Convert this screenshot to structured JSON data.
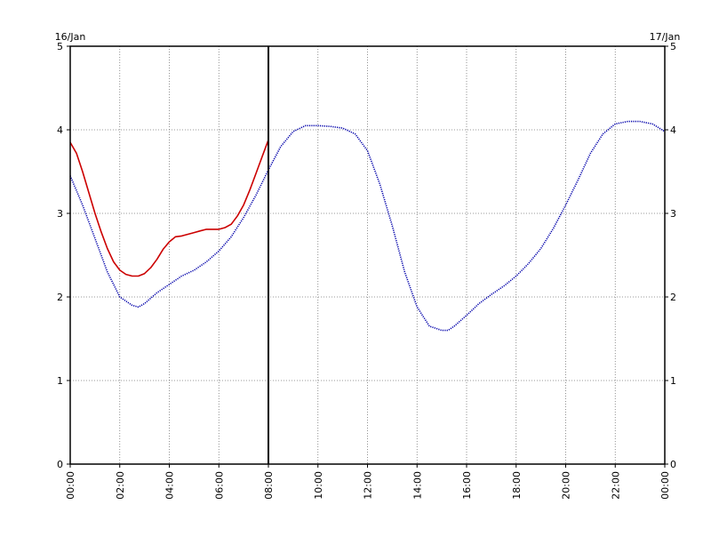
{
  "chart_data": {
    "type": "line",
    "title": "",
    "xlabel": "",
    "ylabel": "",
    "date_left": "16/Jan",
    "date_right": "17/Jan",
    "x_unit": "hours",
    "xlim": [
      0,
      24
    ],
    "ylim": [
      0,
      5
    ],
    "grid": true,
    "grid_style": "dotted",
    "x_tick_values": [
      0,
      2,
      4,
      6,
      8,
      10,
      12,
      14,
      16,
      18,
      20,
      22,
      24
    ],
    "x_tick_labels": [
      "00:00",
      "02:00",
      "04:00",
      "06:00",
      "08:00",
      "10:00",
      "12:00",
      "14:00",
      "16:00",
      "18:00",
      "20:00",
      "22:00",
      "00:00"
    ],
    "y_tick_values": [
      0,
      1,
      2,
      3,
      4,
      5
    ],
    "y_tick_labels": [
      "0",
      "1",
      "2",
      "3",
      "4",
      "5"
    ],
    "current_time_marker": 8.0,
    "series": [
      {
        "color": "#0000aa",
        "style": "dotted",
        "x": [
          0,
          0.5,
          1,
          1.5,
          2,
          2.5,
          2.75,
          3,
          3.5,
          4,
          4.5,
          5,
          5.5,
          6,
          6.5,
          7,
          7.5,
          8,
          8.5,
          9,
          9.5,
          10,
          10.5,
          11,
          11.5,
          12,
          12.5,
          13,
          13.5,
          14,
          14.5,
          15,
          15.25,
          15.5,
          16,
          16.5,
          17,
          17.5,
          18,
          18.5,
          19,
          19.5,
          20,
          20.5,
          21,
          21.5,
          22,
          22.5,
          23,
          23.5,
          24
        ],
        "y": [
          3.45,
          3.1,
          2.7,
          2.3,
          2.0,
          1.9,
          1.88,
          1.92,
          2.05,
          2.15,
          2.25,
          2.32,
          2.42,
          2.55,
          2.72,
          2.95,
          3.22,
          3.52,
          3.8,
          3.98,
          4.05,
          4.05,
          4.04,
          4.02,
          3.95,
          3.75,
          3.35,
          2.85,
          2.3,
          1.88,
          1.65,
          1.6,
          1.6,
          1.65,
          1.78,
          1.92,
          2.03,
          2.13,
          2.25,
          2.4,
          2.58,
          2.82,
          3.1,
          3.4,
          3.72,
          3.95,
          4.07,
          4.1,
          4.1,
          4.07,
          3.98
        ]
      },
      {
        "color": "#cc0000",
        "style": "solid",
        "x": [
          0,
          0.25,
          0.5,
          0.75,
          1,
          1.25,
          1.5,
          1.75,
          2,
          2.25,
          2.5,
          2.75,
          3,
          3.25,
          3.5,
          3.75,
          4,
          4.25,
          4.5,
          4.75,
          5,
          5.25,
          5.5,
          5.75,
          6,
          6.25,
          6.5,
          6.75,
          7,
          7.25,
          7.5,
          7.75,
          8
        ],
        "y": [
          3.85,
          3.72,
          3.5,
          3.25,
          3.0,
          2.78,
          2.58,
          2.42,
          2.32,
          2.27,
          2.25,
          2.25,
          2.28,
          2.35,
          2.45,
          2.57,
          2.66,
          2.72,
          2.73,
          2.75,
          2.77,
          2.79,
          2.81,
          2.81,
          2.81,
          2.83,
          2.87,
          2.97,
          3.1,
          3.28,
          3.48,
          3.68,
          3.88
        ]
      }
    ]
  }
}
